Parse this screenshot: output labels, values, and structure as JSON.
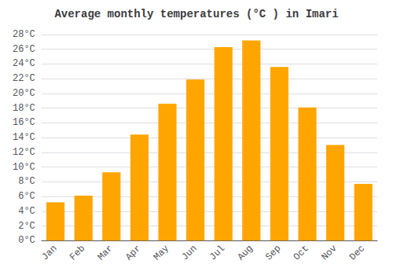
{
  "chart_data": {
    "type": "bar",
    "title": "Average monthly temperatures (°C ) in Imari",
    "categories": [
      "Jan",
      "Feb",
      "Mar",
      "Apr",
      "May",
      "Jun",
      "Jul",
      "Aug",
      "Sep",
      "Oct",
      "Nov",
      "Dec"
    ],
    "values": [
      5.2,
      6.1,
      9.3,
      14.4,
      18.6,
      21.9,
      26.3,
      27.2,
      23.6,
      18.1,
      13.0,
      7.7
    ],
    "color": "#FFA500",
    "ylim": [
      0,
      28
    ],
    "yticks": [
      {
        "value": 0,
        "label": "0°C"
      },
      {
        "value": 2,
        "label": "2°C"
      },
      {
        "value": 4,
        "label": "4°C"
      },
      {
        "value": 6,
        "label": "6°C"
      },
      {
        "value": 8,
        "label": "8°C"
      },
      {
        "value": 10,
        "label": "10°C"
      },
      {
        "value": 12,
        "label": "12°C"
      },
      {
        "value": 14,
        "label": "14°C"
      },
      {
        "value": 16,
        "label": "16°C"
      },
      {
        "value": 18,
        "label": "18°C"
      },
      {
        "value": 20,
        "label": "20°C"
      },
      {
        "value": 22,
        "label": "22°C"
      },
      {
        "value": 24,
        "label": "24°C"
      },
      {
        "value": 26,
        "label": "26°C"
      },
      {
        "value": 28,
        "label": "28°C"
      }
    ],
    "grid": true
  }
}
